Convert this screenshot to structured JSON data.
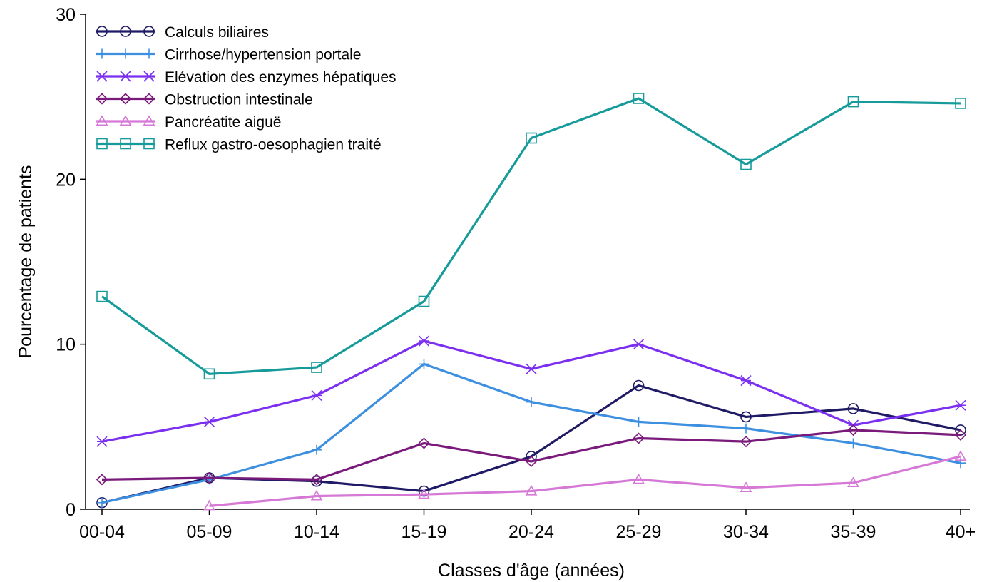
{
  "chart_data": {
    "type": "line",
    "title": "",
    "xlabel": "Classes d'âge (années)",
    "ylabel": "Pourcentage de patients",
    "categories": [
      "00-04",
      "05-09",
      "10-14",
      "15-19",
      "20-24",
      "25-29",
      "30-34",
      "35-39",
      "40+"
    ],
    "ylim": [
      0,
      30
    ],
    "yticks": [
      "0",
      "10",
      "20",
      "30"
    ],
    "grid": false,
    "legend_position": "top-left",
    "series": [
      {
        "name": "Calculs biliaires",
        "color": "#1f1a66",
        "marker": "circle",
        "values": [
          0.4,
          1.9,
          1.7,
          1.1,
          3.2,
          7.5,
          5.6,
          6.1,
          4.8
        ]
      },
      {
        "name": "Cirrhose/hypertension portale",
        "color": "#3d8fe0",
        "marker": "plus",
        "values": [
          0.4,
          1.8,
          3.6,
          8.8,
          6.5,
          5.3,
          4.9,
          4.0,
          2.8
        ]
      },
      {
        "name": "Elévation des enzymes hépatiques",
        "color": "#7b2ff0",
        "marker": "asterisk",
        "values": [
          4.1,
          5.3,
          6.9,
          10.2,
          8.5,
          10.0,
          7.8,
          5.1,
          6.3
        ]
      },
      {
        "name": "Obstruction intestinale",
        "color": "#7a1a7a",
        "marker": "diamond",
        "values": [
          1.8,
          1.9,
          1.8,
          4.0,
          2.9,
          4.3,
          4.1,
          4.8,
          4.5
        ]
      },
      {
        "name": "Pancréatite aiguë",
        "color": "#d678d6",
        "marker": "triangle",
        "values": [
          null,
          0.2,
          0.8,
          0.9,
          1.1,
          1.8,
          1.3,
          1.6,
          3.2
        ]
      },
      {
        "name": "Reflux gastro-oesophagien traité",
        "color": "#179a9a",
        "marker": "square",
        "values": [
          12.9,
          8.2,
          8.6,
          12.6,
          22.5,
          24.9,
          20.9,
          24.7,
          24.6
        ]
      }
    ]
  }
}
